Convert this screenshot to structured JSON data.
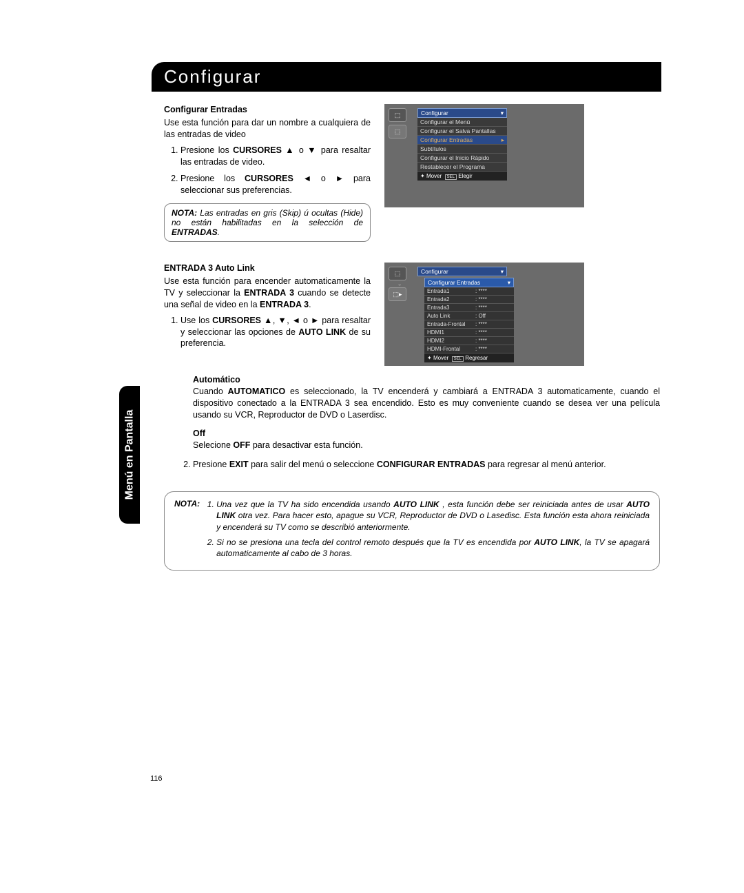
{
  "page_number": "116",
  "header_title": "Configurar",
  "side_tab": "Menú en Pantalla",
  "section1": {
    "heading": "Configurar Entradas",
    "intro": "Use esta función para dar un nombre a cualquiera de las entradas de video",
    "step1_pre": "Presione los ",
    "step1_bold": "CURSORES",
    "step1_arrows": " ▲ o ▼ ",
    "step1_post": "para resaltar las entradas de video.",
    "step2_pre": "Presione los ",
    "step2_bold": "CURSORES",
    "step2_arrows": " ◄ o ► ",
    "step2_post": "para seleccionar sus preferencias.",
    "note_label": "NOTA:",
    "note_pre": "Las entradas en gris (Skip) ú ocultas (Hide) no están habilitadas en la selección de ",
    "note_bold": "ENTRADAS",
    "note_post": "."
  },
  "tv1": {
    "dropdown": "Configurar",
    "items": [
      "Configurar el Menú",
      "Configurar el Salva Pantallas",
      "Configurar Entradas",
      "Subtítulos",
      "Configurar el Inicio Rápido",
      "Restablecer el Programa"
    ],
    "footer_move": "Mover",
    "footer_sel": "SEL",
    "footer_action": "Elegir"
  },
  "section2": {
    "heading": "ENTRADA 3 Auto Link",
    "intro_pre": "Use esta función para encender automaticamente la TV y seleccionar la ",
    "intro_b1": "ENTRADA 3",
    "intro_mid": " cuando se detecte una señal de video en la ",
    "intro_b2": "ENTRADA 3",
    "step1_pre": "Use los ",
    "step1_bold": "CURSORES",
    "step1_arrows": " ▲, ▼, ◄ o ► ",
    "step1_mid": "para resaltar y seleccionar las opciones de ",
    "step1_b2": "AUTO LINK",
    "step1_post": " de su preferencia."
  },
  "tv2": {
    "dropdown": "Configurar",
    "sub_dropdown": "Configurar Entradas",
    "rows": [
      {
        "k": "Entrada1",
        "v": ": ****"
      },
      {
        "k": "Entrada2",
        "v": ": ****"
      },
      {
        "k": "Entrada3",
        "v": ": ****"
      },
      {
        "k": "Auto Link",
        "v": ": Off"
      },
      {
        "k": "Entrada-Frontal",
        "v": ": ****"
      },
      {
        "k": "HDMI1",
        "v": ": ****"
      },
      {
        "k": "HDMI2",
        "v": ": ****"
      },
      {
        "k": "HDMI-Frontal",
        "v": ": ****"
      }
    ],
    "footer_move": "Mover",
    "footer_sel": "SEL",
    "footer_action": "Regresar"
  },
  "auto_section": {
    "h1": "Automático",
    "p1_pre": "Cuando ",
    "p1_b": "AUTOMATICO",
    "p1_post": " es seleccionado, la TV encenderá y cambiará a ENTRADA 3 automaticamente, cuando el dispositivo conectado a la ENTRADA 3 sea encendido. Esto es muy conveniente cuando se desea ver una película usando su VCR, Reproductor de DVD o Laserdisc.",
    "h2": "Off",
    "p2_pre": "Selecione ",
    "p2_b": "OFF",
    "p2_post": " para desactivar esta función.",
    "step2_pre": "Presione ",
    "step2_b1": "EXIT",
    "step2_mid": " para salir del menú o seleccione ",
    "step2_b2": "CONFIGURAR ENTRADAS",
    "step2_post": " para regresar al menú anterior."
  },
  "note_wide": {
    "label": "NOTA:",
    "li1_pre": "Una vez que la TV ha sido encendida usando ",
    "li1_b1": "AUTO LINK",
    "li1_mid1": " , esta función debe ser reiniciada antes de usar ",
    "li1_b2": "AUTO LINK",
    "li1_mid2": " otra vez. Para hacer esto, apague su VCR, Reproductor de DVD o Lasedisc. Esta función esta ahora reiniciada y encenderá su TV como se describió anteriormente.",
    "li2_pre": "Si no se presiona una tecla del control remoto después que la TV es encendida por ",
    "li2_b": "AUTO LINK",
    "li2_post": ", la TV se apagará automaticamente al cabo de 3 horas."
  }
}
